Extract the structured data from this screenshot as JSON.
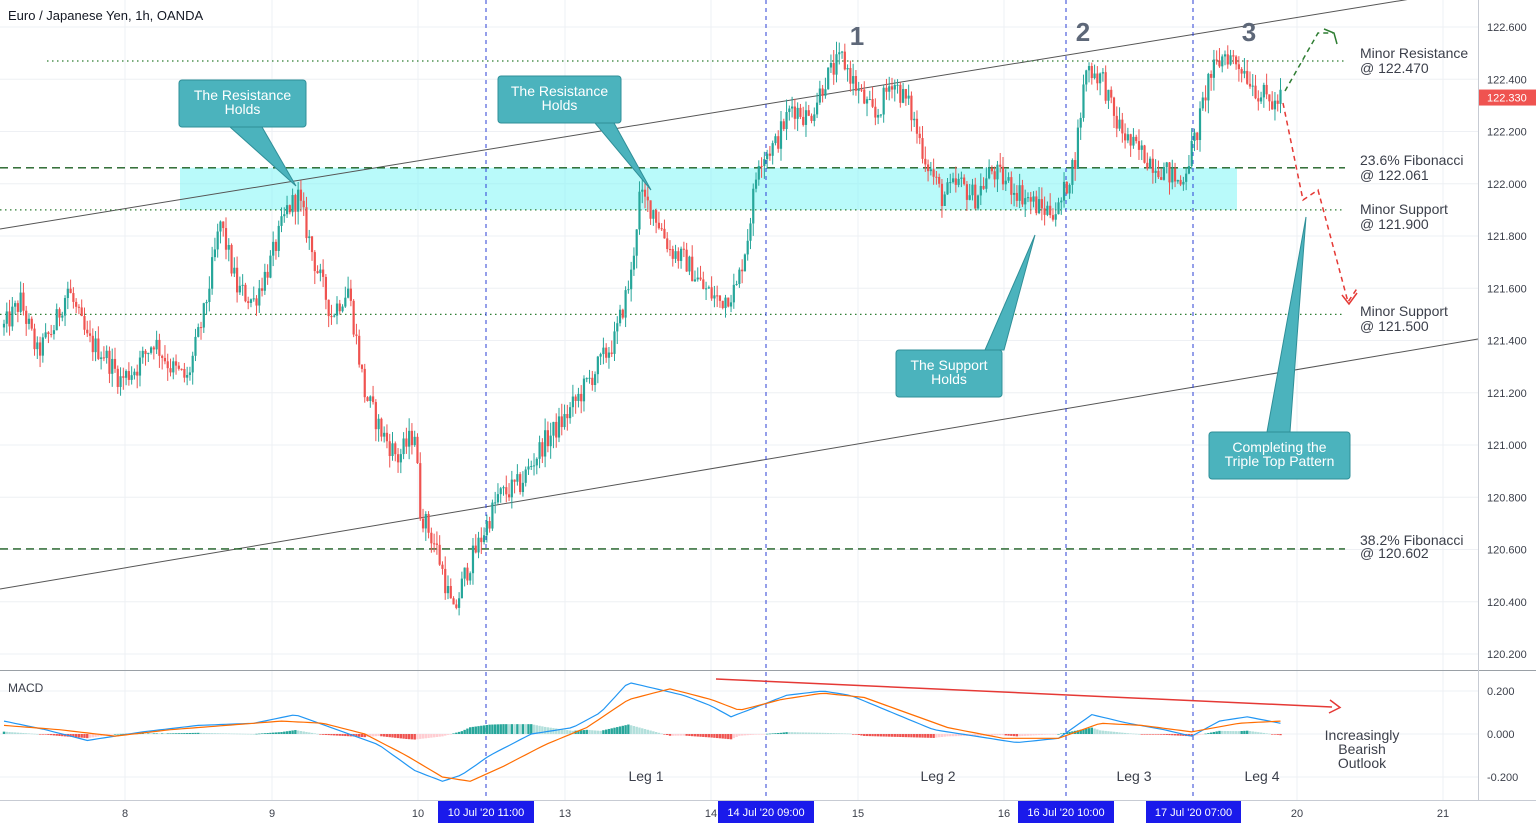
{
  "title": "Euro / Japanese Yen, 1h, OANDA",
  "chart_data": {
    "type": "candlestick",
    "title": "Euro / Japanese Yen, 1h, OANDA",
    "symbol": "EURJPY",
    "timeframe": "1h",
    "source": "OANDA",
    "last_price": "122.330",
    "ylim": [
      120.1,
      122.75
    ],
    "y_ticks": [
      "122.600",
      "122.400",
      "122.200",
      "122.000",
      "121.800",
      "121.600",
      "121.400",
      "121.200",
      "121.000",
      "120.800",
      "120.600",
      "120.400",
      "120.200"
    ],
    "x_ticks": [
      "8",
      "9",
      "10",
      "13",
      "14",
      "15",
      "16",
      "20",
      "21"
    ],
    "price_path": [
      [
        0,
        121.45
      ],
      [
        6,
        121.55
      ],
      [
        12,
        121.35
      ],
      [
        18,
        121.45
      ],
      [
        23,
        121.6
      ],
      [
        30,
        121.4
      ],
      [
        36,
        121.35
      ],
      [
        42,
        121.25
      ],
      [
        48,
        121.3
      ],
      [
        54,
        121.4
      ],
      [
        60,
        121.3
      ],
      [
        66,
        121.25
      ],
      [
        72,
        121.5
      ],
      [
        78,
        121.85
      ],
      [
        84,
        121.6
      ],
      [
        90,
        121.55
      ],
      [
        96,
        121.7
      ],
      [
        102,
        121.9
      ],
      [
        106,
        121.95
      ],
      [
        112,
        121.7
      ],
      [
        118,
        121.5
      ],
      [
        124,
        121.6
      ],
      [
        130,
        121.2
      ],
      [
        136,
        121.05
      ],
      [
        142,
        120.95
      ],
      [
        148,
        121.05
      ],
      [
        150,
        120.75
      ],
      [
        156,
        120.6
      ],
      [
        162,
        120.35
      ],
      [
        166,
        120.5
      ],
      [
        171,
        120.62
      ],
      [
        178,
        120.8
      ],
      [
        186,
        120.85
      ],
      [
        194,
        121.0
      ],
      [
        202,
        121.1
      ],
      [
        208,
        121.2
      ],
      [
        214,
        121.3
      ],
      [
        220,
        121.4
      ],
      [
        226,
        121.65
      ],
      [
        229,
        121.95
      ],
      [
        234,
        121.9
      ],
      [
        240,
        121.75
      ],
      [
        246,
        121.7
      ],
      [
        252,
        121.6
      ],
      [
        258,
        121.55
      ],
      [
        264,
        121.6
      ],
      [
        268,
        121.8
      ],
      [
        272,
        122.1
      ],
      [
        278,
        122.15
      ],
      [
        284,
        122.3
      ],
      [
        290,
        122.25
      ],
      [
        296,
        122.4
      ],
      [
        302,
        122.48
      ],
      [
        308,
        122.35
      ],
      [
        314,
        122.25
      ],
      [
        320,
        122.4
      ],
      [
        326,
        122.3
      ],
      [
        332,
        122.1
      ],
      [
        338,
        121.95
      ],
      [
        344,
        122.0
      ],
      [
        350,
        121.95
      ],
      [
        356,
        122.05
      ],
      [
        362,
        122.0
      ],
      [
        368,
        121.95
      ],
      [
        374,
        121.9
      ],
      [
        380,
        121.9
      ],
      [
        386,
        122.1
      ],
      [
        390,
        122.45
      ],
      [
        396,
        122.4
      ],
      [
        400,
        122.25
      ],
      [
        406,
        122.15
      ],
      [
        412,
        122.1
      ],
      [
        418,
        122.05
      ],
      [
        424,
        122.0
      ],
      [
        430,
        122.2
      ],
      [
        434,
        122.4
      ],
      [
        440,
        122.5
      ],
      [
        446,
        122.45
      ],
      [
        452,
        122.35
      ],
      [
        458,
        122.3
      ],
      [
        460,
        122.33
      ]
    ],
    "levels": [
      {
        "name": "Minor Resistance",
        "value": 122.47,
        "label": "Minor Resistance",
        "value_label": "@ 122.470",
        "style": "dotted",
        "color": "#2e7d32"
      },
      {
        "name": "23.6% Fibonacci",
        "value": 122.061,
        "label": "23.6% Fibonacci",
        "value_label": "@ 122.061",
        "style": "dashed",
        "color": "#1b5e20"
      },
      {
        "name": "Minor Support",
        "value": 121.9,
        "label": "Minor Support",
        "value_label": "@ 121.900",
        "style": "dotted",
        "color": "#2e7d32"
      },
      {
        "name": "Minor Support",
        "value": 121.5,
        "label": "Minor Support",
        "value_label": "@ 121.500",
        "style": "dotted",
        "color": "#2e7d32"
      },
      {
        "name": "38.2% Fibonacci",
        "value": 120.602,
        "label": "38.2% Fibonacci",
        "value_label": "@ 120.602",
        "style": "dashed",
        "color": "#1b5e20"
      }
    ],
    "zone": {
      "from": 121.9,
      "to": 122.061,
      "color": "#7ff5f5"
    },
    "peaks": [
      "1",
      "2",
      "3"
    ],
    "callouts": [
      {
        "id": "resistance-1",
        "text": [
          "The Resistance",
          "Holds"
        ]
      },
      {
        "id": "resistance-2",
        "text": [
          "The Resistance",
          "Holds"
        ]
      },
      {
        "id": "support",
        "text": [
          "The Support",
          "Holds"
        ]
      },
      {
        "id": "triple-top",
        "text": [
          "Completing the",
          "Triple Top Pattern"
        ]
      }
    ],
    "date_labels": [
      "10 Jul '20   11:00",
      "14 Jul '20   09:00",
      "16 Jul '20   10:00",
      "17 Jul '20   07:00"
    ],
    "macd": {
      "label": "MACD",
      "ylim": [
        -0.3,
        0.3
      ],
      "y_ticks": [
        "0.200",
        "0.000",
        "-0.200"
      ],
      "legs": [
        "Leg 1",
        "Leg 2",
        "Leg 3",
        "Leg 4"
      ],
      "outlook": [
        "Increasingly",
        "Bearish",
        "Outlook"
      ],
      "macd_path": [
        [
          0,
          0.06
        ],
        [
          15,
          0.02
        ],
        [
          30,
          -0.03
        ],
        [
          50,
          0.01
        ],
        [
          70,
          0.04
        ],
        [
          90,
          0.05
        ],
        [
          105,
          0.09
        ],
        [
          120,
          0.02
        ],
        [
          135,
          -0.05
        ],
        [
          148,
          -0.17
        ],
        [
          158,
          -0.22
        ],
        [
          165,
          -0.19
        ],
        [
          175,
          -0.1
        ],
        [
          190,
          0.0
        ],
        [
          205,
          0.03
        ],
        [
          215,
          0.1
        ],
        [
          225,
          0.24
        ],
        [
          235,
          0.21
        ],
        [
          245,
          0.18
        ],
        [
          255,
          0.13
        ],
        [
          262,
          0.08
        ],
        [
          270,
          0.12
        ],
        [
          282,
          0.18
        ],
        [
          295,
          0.2
        ],
        [
          305,
          0.18
        ],
        [
          320,
          0.1
        ],
        [
          335,
          0.02
        ],
        [
          350,
          -0.01
        ],
        [
          365,
          -0.04
        ],
        [
          380,
          -0.02
        ],
        [
          392,
          0.09
        ],
        [
          405,
          0.05
        ],
        [
          418,
          0.02
        ],
        [
          428,
          -0.01
        ],
        [
          438,
          0.06
        ],
        [
          448,
          0.08
        ],
        [
          460,
          0.05
        ]
      ],
      "signal_path": [
        [
          0,
          0.04
        ],
        [
          20,
          0.02
        ],
        [
          40,
          -0.01
        ],
        [
          60,
          0.02
        ],
        [
          80,
          0.04
        ],
        [
          100,
          0.06
        ],
        [
          115,
          0.05
        ],
        [
          130,
          0.0
        ],
        [
          145,
          -0.1
        ],
        [
          158,
          -0.2
        ],
        [
          168,
          -0.22
        ],
        [
          180,
          -0.15
        ],
        [
          195,
          -0.05
        ],
        [
          210,
          0.03
        ],
        [
          225,
          0.16
        ],
        [
          240,
          0.21
        ],
        [
          255,
          0.16
        ],
        [
          265,
          0.11
        ],
        [
          280,
          0.16
        ],
        [
          295,
          0.19
        ],
        [
          310,
          0.17
        ],
        [
          325,
          0.1
        ],
        [
          340,
          0.03
        ],
        [
          360,
          -0.02
        ],
        [
          380,
          -0.02
        ],
        [
          395,
          0.05
        ],
        [
          410,
          0.04
        ],
        [
          428,
          0.01
        ],
        [
          445,
          0.05
        ],
        [
          460,
          0.06
        ]
      ]
    }
  }
}
